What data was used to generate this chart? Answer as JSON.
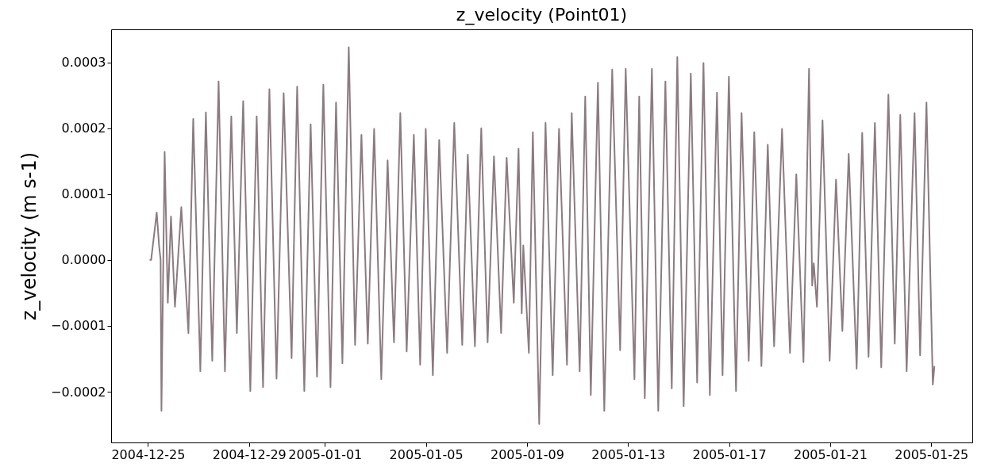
{
  "chart_data": {
    "type": "line",
    "title": "z_velocity (Point01)",
    "ylabel": "z_velocity (m s-1)",
    "xlim": [
      "2004-12-23T13:00",
      "2005-01-26T15:00"
    ],
    "xticks": [
      "2004-12-25",
      "2004-12-29",
      "2005-01-01",
      "2005-01-05",
      "2005-01-09",
      "2005-01-13",
      "2005-01-17",
      "2005-01-21",
      "2005-01-25"
    ],
    "ylim": [
      -0.000277,
      0.00035
    ],
    "yticks": [
      {
        "value": -0.0002,
        "label": "−0.0002"
      },
      {
        "value": -0.0001,
        "label": "−0.0001"
      },
      {
        "value": 0,
        "label": "0.0000"
      },
      {
        "value": 0.0001,
        "label": "0.0001"
      },
      {
        "value": 0.0002,
        "label": "0.0002"
      },
      {
        "value": 0.0003,
        "label": "0.0003"
      }
    ],
    "grid": false,
    "line_style": "solid",
    "series": [
      {
        "color": "#8c7b80",
        "x": [
          "2004-12-25T01:30",
          "2004-12-25T03:00",
          "2004-12-25T08:18",
          "2004-12-25T10:33",
          "2004-12-25T12:00",
          "2004-12-25T12:48",
          "2004-12-25T15:50",
          "2004-12-25T18:50",
          "2004-12-25T21:52",
          "2004-12-26T01:38",
          "2004-12-26T07:40",
          "2004-12-26T14:26",
          "2004-12-26T19:00",
          "2004-12-27T01:45",
          "2004-12-27T07:00",
          "2004-12-27T13:04",
          "2004-12-27T19:05",
          "2004-12-28T01:07",
          "2004-12-28T07:09",
          "2004-12-28T12:25",
          "2004-12-28T18:27",
          "2004-12-29T01:14",
          "2004-12-29T07:16",
          "2004-12-29T13:18",
          "2004-12-29T19:20",
          "2004-12-30T02:07",
          "2004-12-30T08:54",
          "2004-12-30T16:26",
          "2004-12-30T21:43",
          "2004-12-31T04:30",
          "2004-12-31T10:32",
          "2004-12-31T16:34",
          "2004-12-31T22:35",
          "2005-01-01T05:22",
          "2005-01-01T10:39",
          "2005-01-01T16:41",
          "2005-01-01T22:43",
          "2005-01-02T04:44",
          "2005-01-02T10:46",
          "2005-01-02T16:48",
          "2005-01-02T22:50",
          "2005-01-03T05:37",
          "2005-01-03T11:38",
          "2005-01-03T17:40",
          "2005-01-03T23:42",
          "2005-01-04T05:44",
          "2005-01-04T12:31",
          "2005-01-04T18:33",
          "2005-01-04T23:50",
          "2005-01-05T06:36",
          "2005-01-05T12:38",
          "2005-01-05T20:10",
          "2005-01-06T02:57",
          "2005-01-06T10:30",
          "2005-01-06T15:46",
          "2005-01-06T22:33",
          "2005-01-07T04:35",
          "2005-01-07T10:37",
          "2005-01-07T16:39",
          "2005-01-07T23:26",
          "2005-01-08T04:42",
          "2005-01-08T11:29",
          "2005-01-08T16:00",
          "2005-01-08T19:01",
          "2005-01-08T20:31",
          "2005-01-09T01:48",
          "2005-01-09T05:34",
          "2005-01-09T11:36",
          "2005-01-09T17:38",
          "2005-01-10T00:25",
          "2005-01-10T06:27",
          "2005-01-10T14:00",
          "2005-01-10T18:31",
          "2005-01-11T02:03",
          "2005-01-11T07:20",
          "2005-01-11T12:37",
          "2005-01-11T19:24",
          "2005-01-12T01:26",
          "2005-01-12T08:58",
          "2005-01-12T16:30",
          "2005-01-12T21:47",
          "2005-01-13T06:05",
          "2005-01-13T10:36",
          "2005-01-13T15:53",
          "2005-01-13T22:40",
          "2005-01-14T04:42",
          "2005-01-14T11:29",
          "2005-01-14T17:31",
          "2005-01-14T22:48",
          "2005-01-15T04:50",
          "2005-01-15T11:37",
          "2005-01-15T17:38",
          "2005-01-15T23:40",
          "2005-01-16T05:42",
          "2005-01-16T12:29",
          "2005-01-16T17:46",
          "2005-01-16T23:47",
          "2005-01-17T06:34",
          "2005-01-17T11:51",
          "2005-01-17T18:38",
          "2005-01-17T23:54",
          "2005-01-18T06:41",
          "2005-01-18T12:43",
          "2005-01-18T18:45",
          "2005-01-19T02:17",
          "2005-01-19T09:50",
          "2005-01-19T15:51",
          "2005-01-19T22:38",
          "2005-01-20T03:55",
          "2005-01-20T06:55",
          "2005-01-20T08:25",
          "2005-01-20T11:27",
          "2005-01-20T16:44",
          "2005-01-20T23:31",
          "2005-01-21T05:33",
          "2005-01-21T11:35",
          "2005-01-21T17:36",
          "2005-01-22T01:09",
          "2005-01-22T06:25",
          "2005-01-22T12:27",
          "2005-01-22T18:29",
          "2005-01-23T00:31",
          "2005-01-23T07:18",
          "2005-01-23T13:20",
          "2005-01-23T18:36",
          "2005-01-24T00:38",
          "2005-01-24T08:10",
          "2005-01-24T13:26",
          "2005-01-24T19:28",
          "2005-01-25T01:30",
          "2005-01-25T03:00"
        ],
        "values": [
          0,
          0,
          7.2e-05,
          2.2e-05,
          0,
          -0.000229,
          0.000164,
          -6.5e-05,
          6.6e-05,
          -7.1e-05,
          8e-05,
          -0.000111,
          0.000214,
          -0.000169,
          0.000224,
          -0.000153,
          0.000271,
          -0.000169,
          0.000218,
          -0.000111,
          0.000241,
          -0.000199,
          0.000218,
          -0.000193,
          0.000259,
          -0.00018,
          0.000253,
          -0.000149,
          0.000263,
          -0.000199,
          0.000206,
          -0.000177,
          0.000266,
          -0.000193,
          0.000239,
          -0.000157,
          0.000323,
          -0.000129,
          0.00019,
          -0.000127,
          0.000199,
          -0.000181,
          0.000151,
          -0.000125,
          0.000223,
          -0.000139,
          0.00019,
          -0.000159,
          0.000199,
          -0.000175,
          0.000182,
          -0.000141,
          0.000208,
          -0.000129,
          0.00016,
          -0.000131,
          0.0002,
          -0.000125,
          0.000157,
          -0.000111,
          0.000155,
          -6.5e-05,
          0.000169,
          -8.1e-05,
          2.2e-05,
          -0.000141,
          0.000194,
          -0.000249,
          0.000208,
          -0.000175,
          0.000199,
          -0.000159,
          0.000223,
          -0.000169,
          0.000248,
          -0.000205,
          0.000269,
          -0.000229,
          0.000289,
          -0.000137,
          0.00029,
          -0.000181,
          0.000248,
          -0.00021,
          0.00029,
          -0.000229,
          0.000271,
          -0.000195,
          0.000308,
          -0.000222,
          0.000283,
          -0.000186,
          0.000299,
          -0.000205,
          0.000254,
          -0.000175,
          0.000278,
          -0.000199,
          0.000223,
          -0.000153,
          0.000194,
          -0.000161,
          0.000175,
          -0.000131,
          0.000199,
          -0.000141,
          0.00013,
          -0.000155,
          0.00029,
          -3.9e-05,
          -5e-06,
          -7.1e-05,
          0.000212,
          -0.000153,
          0.000122,
          -0.000108,
          0.000161,
          -0.000165,
          0.000193,
          -0.000147,
          0.000208,
          -0.000163,
          0.000251,
          -0.000127,
          0.00022,
          -0.000169,
          0.000223,
          -0.000145,
          0.000239,
          -0.000189,
          -0.000161
        ]
      }
    ]
  }
}
